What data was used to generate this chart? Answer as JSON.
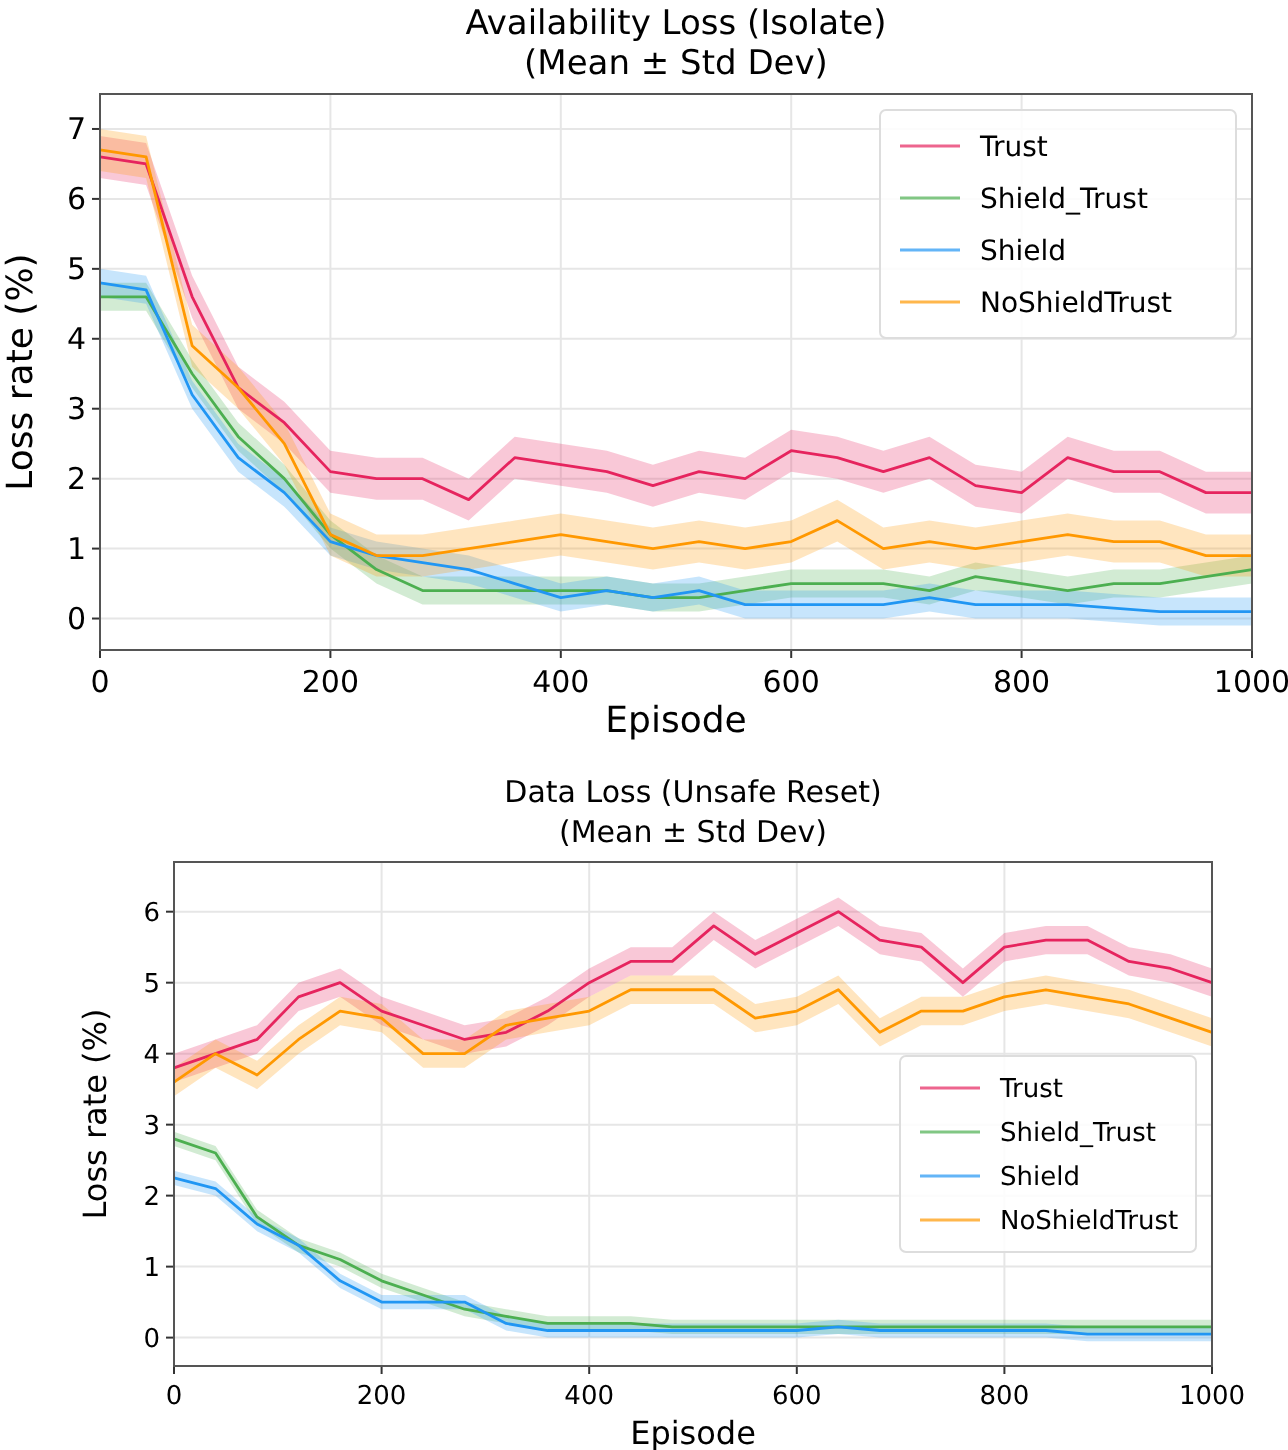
{
  "chart_data": [
    {
      "type": "line",
      "title": "Availability Loss (Isolate)",
      "subtitle": "(Mean ± Std Dev)",
      "xlabel": "Episode",
      "ylabel": "Loss rate (%)",
      "x": [
        0,
        40,
        80,
        120,
        160,
        200,
        240,
        280,
        320,
        360,
        400,
        440,
        480,
        520,
        560,
        600,
        640,
        680,
        720,
        760,
        800,
        840,
        880,
        920,
        960,
        1000
      ],
      "xlim": [
        0,
        1000
      ],
      "xticks": [
        0,
        200,
        400,
        600,
        800,
        1000
      ],
      "ylim": [
        -0.45,
        7.5
      ],
      "yticks": [
        0,
        1,
        2,
        3,
        4,
        5,
        6,
        7
      ],
      "grid": true,
      "legend": "top right",
      "series": [
        {
          "name": "Trust",
          "color": "#e6245e",
          "values": [
            6.6,
            6.5,
            4.6,
            3.3,
            2.8,
            2.1,
            2.0,
            2.0,
            1.7,
            2.3,
            2.2,
            2.1,
            1.9,
            2.1,
            2.0,
            2.4,
            2.3,
            2.1,
            2.3,
            1.9,
            1.8,
            2.3,
            2.1,
            2.1,
            1.8,
            1.8
          ],
          "lower": [
            6.3,
            6.2,
            4.3,
            3.0,
            2.5,
            1.8,
            1.7,
            1.7,
            1.4,
            2.0,
            1.9,
            1.8,
            1.6,
            1.8,
            1.7,
            2.1,
            2.0,
            1.8,
            2.0,
            1.6,
            1.5,
            2.0,
            1.8,
            1.8,
            1.5,
            1.5
          ],
          "upper": [
            6.9,
            6.8,
            4.9,
            3.6,
            3.1,
            2.4,
            2.3,
            2.3,
            2.0,
            2.6,
            2.5,
            2.4,
            2.2,
            2.4,
            2.3,
            2.7,
            2.6,
            2.4,
            2.6,
            2.2,
            2.1,
            2.6,
            2.4,
            2.4,
            2.1,
            2.1
          ]
        },
        {
          "name": "Shield_Trust",
          "color": "#4caf50",
          "values": [
            4.6,
            4.6,
            3.5,
            2.6,
            2.0,
            1.2,
            0.7,
            0.4,
            0.4,
            0.4,
            0.4,
            0.4,
            0.3,
            0.3,
            0.4,
            0.5,
            0.5,
            0.5,
            0.4,
            0.6,
            0.5,
            0.4,
            0.5,
            0.5,
            0.6,
            0.7
          ],
          "lower": [
            4.4,
            4.4,
            3.3,
            2.4,
            1.8,
            1.0,
            0.5,
            0.2,
            0.2,
            0.2,
            0.2,
            0.2,
            0.1,
            0.1,
            0.2,
            0.3,
            0.3,
            0.3,
            0.2,
            0.4,
            0.3,
            0.2,
            0.3,
            0.3,
            0.4,
            0.5
          ],
          "upper": [
            4.8,
            4.8,
            3.7,
            2.8,
            2.2,
            1.4,
            0.9,
            0.6,
            0.6,
            0.6,
            0.6,
            0.6,
            0.5,
            0.5,
            0.6,
            0.7,
            0.7,
            0.7,
            0.6,
            0.8,
            0.7,
            0.6,
            0.7,
            0.7,
            0.8,
            0.9
          ]
        },
        {
          "name": "Shield",
          "color": "#2196f3",
          "values": [
            4.8,
            4.7,
            3.2,
            2.3,
            1.8,
            1.1,
            0.9,
            0.8,
            0.7,
            0.5,
            0.3,
            0.4,
            0.3,
            0.4,
            0.2,
            0.2,
            0.2,
            0.2,
            0.3,
            0.2,
            0.2,
            0.2,
            0.15,
            0.1,
            0.1,
            0.1
          ],
          "lower": [
            4.6,
            4.5,
            3.0,
            2.1,
            1.6,
            0.9,
            0.7,
            0.6,
            0.5,
            0.3,
            0.1,
            0.2,
            0.1,
            0.2,
            0.0,
            0.0,
            0.0,
            0.0,
            0.1,
            0.0,
            0.0,
            0.0,
            -0.05,
            -0.1,
            -0.1,
            -0.1
          ],
          "upper": [
            5.0,
            4.9,
            3.4,
            2.5,
            2.0,
            1.3,
            1.1,
            1.0,
            0.9,
            0.7,
            0.5,
            0.6,
            0.5,
            0.6,
            0.4,
            0.4,
            0.4,
            0.4,
            0.5,
            0.4,
            0.4,
            0.4,
            0.35,
            0.3,
            0.3,
            0.3
          ]
        },
        {
          "name": "NoShieldTrust",
          "color": "#ff9800",
          "values": [
            6.7,
            6.6,
            3.9,
            3.3,
            2.5,
            1.2,
            0.9,
            0.9,
            1.0,
            1.1,
            1.2,
            1.1,
            1.0,
            1.1,
            1.0,
            1.1,
            1.4,
            1.0,
            1.1,
            1.0,
            1.1,
            1.2,
            1.1,
            1.1,
            0.9,
            0.9
          ],
          "lower": [
            6.4,
            6.3,
            3.6,
            3.0,
            2.2,
            0.9,
            0.6,
            0.6,
            0.7,
            0.8,
            0.9,
            0.8,
            0.7,
            0.8,
            0.7,
            0.8,
            1.1,
            0.7,
            0.8,
            0.7,
            0.8,
            0.9,
            0.8,
            0.8,
            0.6,
            0.6
          ],
          "upper": [
            7.0,
            6.9,
            4.2,
            3.6,
            2.8,
            1.5,
            1.2,
            1.2,
            1.3,
            1.4,
            1.5,
            1.4,
            1.3,
            1.4,
            1.3,
            1.4,
            1.7,
            1.3,
            1.4,
            1.3,
            1.4,
            1.5,
            1.4,
            1.4,
            1.2,
            1.2
          ]
        }
      ]
    },
    {
      "type": "line",
      "title": "Data Loss (Unsafe Reset)",
      "subtitle": "(Mean ± Std Dev)",
      "xlabel": "Episode",
      "ylabel": "Loss rate (%)",
      "x": [
        0,
        40,
        80,
        120,
        160,
        200,
        240,
        280,
        320,
        360,
        400,
        440,
        480,
        520,
        560,
        600,
        640,
        680,
        720,
        760,
        800,
        840,
        880,
        920,
        960,
        1000
      ],
      "xlim": [
        0,
        1000
      ],
      "xticks": [
        0,
        200,
        400,
        600,
        800,
        1000
      ],
      "ylim": [
        -0.4,
        6.7
      ],
      "yticks": [
        0,
        1,
        2,
        3,
        4,
        5,
        6
      ],
      "grid": true,
      "legend": "right",
      "series": [
        {
          "name": "Trust",
          "color": "#e6245e",
          "values": [
            3.8,
            4.0,
            4.2,
            4.8,
            5.0,
            4.6,
            4.4,
            4.2,
            4.3,
            4.6,
            5.0,
            5.3,
            5.3,
            5.8,
            5.4,
            5.7,
            6.0,
            5.6,
            5.5,
            5.0,
            5.5,
            5.6,
            5.6,
            5.3,
            5.2,
            5.0
          ],
          "lower": [
            3.6,
            3.8,
            4.0,
            4.6,
            4.8,
            4.4,
            4.2,
            4.0,
            4.1,
            4.4,
            4.8,
            5.1,
            5.1,
            5.6,
            5.2,
            5.5,
            5.8,
            5.4,
            5.3,
            4.8,
            5.3,
            5.4,
            5.4,
            5.1,
            5.0,
            4.8
          ],
          "upper": [
            4.0,
            4.2,
            4.4,
            5.0,
            5.2,
            4.8,
            4.6,
            4.4,
            4.5,
            4.8,
            5.2,
            5.5,
            5.5,
            6.0,
            5.6,
            5.9,
            6.2,
            5.8,
            5.7,
            5.2,
            5.7,
            5.8,
            5.8,
            5.5,
            5.4,
            5.2
          ]
        },
        {
          "name": "Shield_Trust",
          "color": "#4caf50",
          "values": [
            2.8,
            2.6,
            1.7,
            1.3,
            1.1,
            0.8,
            0.6,
            0.4,
            0.3,
            0.2,
            0.2,
            0.2,
            0.15,
            0.15,
            0.15,
            0.15,
            0.15,
            0.15,
            0.15,
            0.15,
            0.15,
            0.15,
            0.15,
            0.15,
            0.15,
            0.15
          ],
          "lower": [
            2.7,
            2.5,
            1.6,
            1.2,
            1.0,
            0.7,
            0.5,
            0.3,
            0.2,
            0.1,
            0.1,
            0.1,
            0.05,
            0.05,
            0.05,
            0.05,
            0.05,
            0.05,
            0.05,
            0.05,
            0.05,
            0.05,
            0.05,
            0.05,
            0.05,
            0.05
          ],
          "upper": [
            2.9,
            2.7,
            1.8,
            1.4,
            1.2,
            0.9,
            0.7,
            0.5,
            0.4,
            0.3,
            0.3,
            0.3,
            0.25,
            0.25,
            0.25,
            0.25,
            0.25,
            0.25,
            0.25,
            0.25,
            0.25,
            0.25,
            0.25,
            0.25,
            0.25,
            0.25
          ]
        },
        {
          "name": "Shield",
          "color": "#2196f3",
          "values": [
            2.25,
            2.1,
            1.6,
            1.3,
            0.8,
            0.5,
            0.5,
            0.5,
            0.2,
            0.1,
            0.1,
            0.1,
            0.1,
            0.1,
            0.1,
            0.1,
            0.15,
            0.1,
            0.1,
            0.1,
            0.1,
            0.1,
            0.05,
            0.05,
            0.05,
            0.05
          ],
          "lower": [
            2.15,
            2.0,
            1.5,
            1.2,
            0.7,
            0.4,
            0.4,
            0.4,
            0.1,
            0.0,
            0.0,
            0.0,
            0.0,
            0.0,
            0.0,
            0.0,
            0.05,
            0.0,
            0.0,
            0.0,
            0.0,
            0.0,
            -0.05,
            -0.05,
            -0.05,
            -0.05
          ],
          "upper": [
            2.35,
            2.2,
            1.7,
            1.4,
            0.9,
            0.6,
            0.6,
            0.6,
            0.3,
            0.2,
            0.2,
            0.2,
            0.2,
            0.2,
            0.2,
            0.2,
            0.25,
            0.2,
            0.2,
            0.2,
            0.2,
            0.2,
            0.15,
            0.15,
            0.15,
            0.15
          ]
        },
        {
          "name": "NoShieldTrust",
          "color": "#ff9800",
          "values": [
            3.6,
            4.0,
            3.7,
            4.2,
            4.6,
            4.5,
            4.0,
            4.0,
            4.4,
            4.5,
            4.6,
            4.9,
            4.9,
            4.9,
            4.5,
            4.6,
            4.9,
            4.3,
            4.6,
            4.6,
            4.8,
            4.9,
            4.8,
            4.7,
            4.5,
            4.3
          ],
          "lower": [
            3.4,
            3.8,
            3.5,
            4.0,
            4.4,
            4.3,
            3.8,
            3.8,
            4.2,
            4.3,
            4.4,
            4.7,
            4.7,
            4.7,
            4.3,
            4.4,
            4.7,
            4.1,
            4.4,
            4.4,
            4.6,
            4.7,
            4.6,
            4.5,
            4.3,
            4.1
          ],
          "upper": [
            3.8,
            4.2,
            3.9,
            4.4,
            4.8,
            4.7,
            4.2,
            4.2,
            4.6,
            4.7,
            4.8,
            5.1,
            5.1,
            5.1,
            4.7,
            4.8,
            5.1,
            4.5,
            4.8,
            4.8,
            5.0,
            5.1,
            5.0,
            4.9,
            4.7,
            4.5
          ]
        }
      ]
    }
  ]
}
